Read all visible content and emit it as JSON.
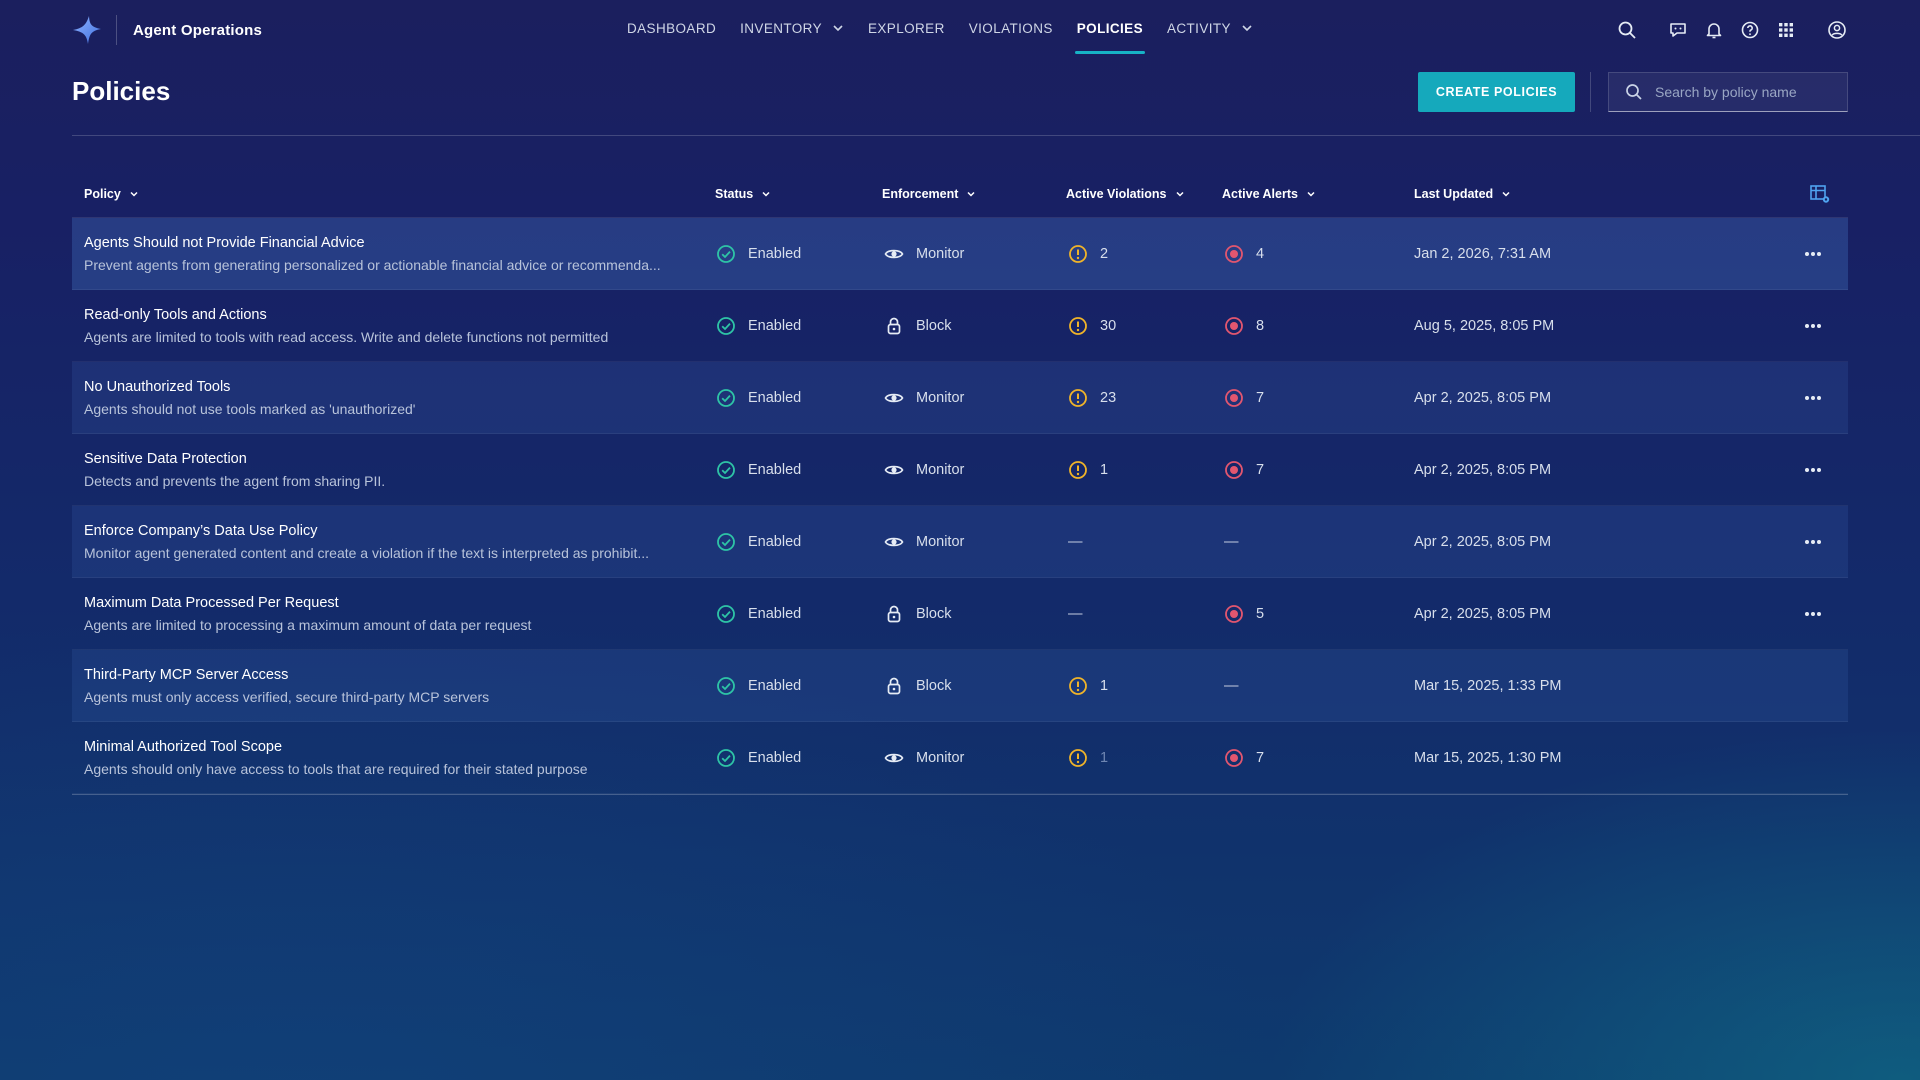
{
  "app": {
    "name": "Agent Operations"
  },
  "nav": {
    "items": [
      {
        "label": "DASHBOARD",
        "has_menu": false,
        "active": false
      },
      {
        "label": "INVENTORY",
        "has_menu": true,
        "active": false
      },
      {
        "label": "EXPLORER",
        "has_menu": false,
        "active": false
      },
      {
        "label": "VIOLATIONS",
        "has_menu": false,
        "active": false
      },
      {
        "label": "POLICIES",
        "has_menu": false,
        "active": true
      },
      {
        "label": "ACTIVITY",
        "has_menu": true,
        "active": false
      }
    ]
  },
  "top_icons": [
    "search-icon",
    "assistant-chat-icon",
    "bell-icon",
    "help-icon",
    "apps-grid-icon",
    "user-account-icon"
  ],
  "page": {
    "title": "Policies",
    "create_button": "CREATE POLICIES",
    "search_placeholder": "Search by policy name"
  },
  "table": {
    "columns": {
      "policy": "Policy",
      "status": "Status",
      "enforcement": "Enforcement",
      "violations": "Active Violations",
      "alerts": "Active Alerts",
      "updated": "Last Updated"
    },
    "rows": [
      {
        "name": "Agents Should not Provide Financial Advice",
        "description": "Prevent agents from generating personalized or actionable financial advice or recommenda...",
        "status": "Enabled",
        "enforcement": "Monitor",
        "violations": "2",
        "alerts": "4",
        "updated": "Jan 2, 2026, 7:31 AM",
        "has_menu": true
      },
      {
        "name": "Read-only Tools and Actions",
        "description": "Agents are limited to tools with read access. Write and delete functions not permitted",
        "status": "Enabled",
        "enforcement": "Block",
        "violations": "30",
        "alerts": "8",
        "updated": "Aug 5, 2025, 8:05 PM",
        "has_menu": true
      },
      {
        "name": "No Unauthorized Tools",
        "description": "Agents should not use tools marked as 'unauthorized'",
        "status": "Enabled",
        "enforcement": "Monitor",
        "violations": "23",
        "alerts": "7",
        "updated": "Apr 2, 2025, 8:05 PM",
        "has_menu": true
      },
      {
        "name": "Sensitive Data Protection",
        "description": "Detects and prevents the agent from sharing PII.",
        "status": "Enabled",
        "enforcement": "Monitor",
        "violations": "1",
        "alerts": "7",
        "updated": "Apr 2, 2025, 8:05 PM",
        "has_menu": true
      },
      {
        "name": "Enforce Company’s Data Use Policy",
        "description": "Monitor agent generated content and create a violation if the text is interpreted as prohibit...",
        "status": "Enabled",
        "enforcement": "Monitor",
        "violations": "—",
        "alerts": "—",
        "updated": "Apr 2, 2025, 8:05 PM",
        "has_menu": true
      },
      {
        "name": "Maximum Data Processed Per Request",
        "description": "Agents are limited to processing a maximum amount of data per request",
        "status": "Enabled",
        "enforcement": "Block",
        "violations": "—",
        "alerts": "5",
        "updated": "Apr 2, 2025, 8:05 PM",
        "has_menu": true
      },
      {
        "name": "Third-Party MCP Server Access",
        "description": "Agents must only access verified, secure third-party MCP servers",
        "status": "Enabled",
        "enforcement": "Block",
        "violations": "1",
        "alerts": "—",
        "updated": "Mar 15, 2025, 1:33 PM",
        "has_menu": false
      },
      {
        "name": "Minimal Authorized Tool Scope",
        "description": "Agents should only have access to tools that are required for their stated purpose",
        "status": "Enabled",
        "enforcement": "Monitor",
        "violations": "1",
        "alerts": "7",
        "updated": "Mar 15, 2025, 1:30 PM",
        "has_menu": false
      }
    ]
  },
  "colors": {
    "accent": "#15a9bc",
    "enabled": "#2ec4a6",
    "violation": "#f0b429",
    "alert": "#e2566f"
  }
}
